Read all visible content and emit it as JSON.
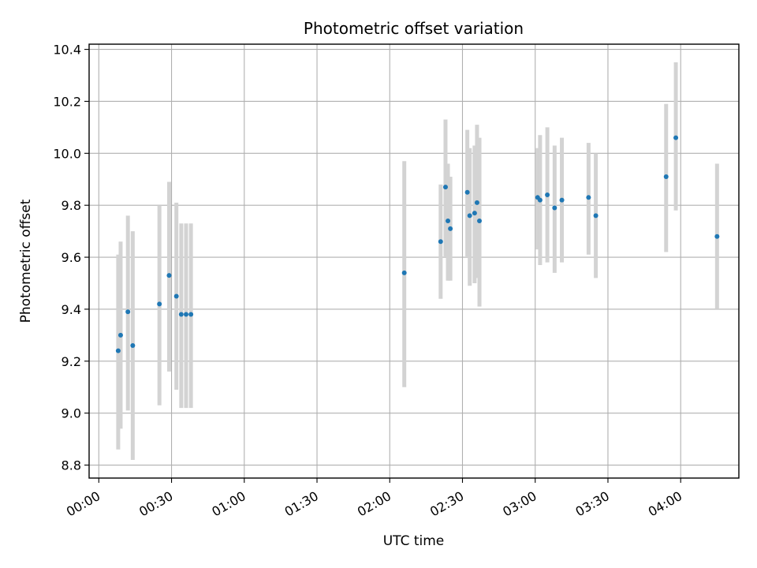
{
  "chart_data": {
    "type": "scatter",
    "title": "Photometric offset variation",
    "xlabel": "UTC time",
    "ylabel": "Photometric offset",
    "x_ticks": [
      "00:00",
      "00:30",
      "01:00",
      "01:30",
      "02:00",
      "02:30",
      "03:00",
      "03:30",
      "04:00"
    ],
    "y_ticks": [
      "8.8",
      "9.0",
      "9.2",
      "9.4",
      "9.6",
      "9.8",
      "10.0",
      "10.2",
      "10.4"
    ],
    "xlim": [
      "23:56",
      "04:24"
    ],
    "ylim": [
      8.75,
      10.42
    ],
    "grid": true,
    "series": [
      {
        "marker_color": "#1f77b4",
        "errorbar_color": "#d3d3d3",
        "points": [
          {
            "x": "00:08",
            "y": 9.24,
            "low": 8.86,
            "high": 9.61
          },
          {
            "x": "00:09",
            "y": 9.3,
            "low": 8.94,
            "high": 9.66
          },
          {
            "x": "00:12",
            "y": 9.39,
            "low": 9.01,
            "high": 9.76
          },
          {
            "x": "00:14",
            "y": 9.26,
            "low": 8.82,
            "high": 9.7
          },
          {
            "x": "00:25",
            "y": 9.42,
            "low": 9.03,
            "high": 9.8
          },
          {
            "x": "00:29",
            "y": 9.53,
            "low": 9.16,
            "high": 9.89
          },
          {
            "x": "00:32",
            "y": 9.45,
            "low": 9.09,
            "high": 9.81
          },
          {
            "x": "00:34",
            "y": 9.38,
            "low": 9.02,
            "high": 9.73
          },
          {
            "x": "00:36",
            "y": 9.38,
            "low": 9.02,
            "high": 9.73
          },
          {
            "x": "00:38",
            "y": 9.38,
            "low": 9.02,
            "high": 9.73
          },
          {
            "x": "02:06",
            "y": 9.54,
            "low": 9.1,
            "high": 9.97
          },
          {
            "x": "02:21",
            "y": 9.66,
            "low": 9.44,
            "high": 9.88
          },
          {
            "x": "02:23",
            "y": 9.87,
            "low": 9.6,
            "high": 10.13
          },
          {
            "x": "02:24",
            "y": 9.74,
            "low": 9.51,
            "high": 9.96
          },
          {
            "x": "02:25",
            "y": 9.71,
            "low": 9.51,
            "high": 9.91
          },
          {
            "x": "02:32",
            "y": 9.85,
            "low": 9.6,
            "high": 10.09
          },
          {
            "x": "02:33",
            "y": 9.76,
            "low": 9.49,
            "high": 10.02
          },
          {
            "x": "02:35",
            "y": 9.77,
            "low": 9.5,
            "high": 10.03
          },
          {
            "x": "02:36",
            "y": 9.81,
            "low": 9.52,
            "high": 10.11
          },
          {
            "x": "02:37",
            "y": 9.74,
            "low": 9.41,
            "high": 10.06
          },
          {
            "x": "03:01",
            "y": 9.83,
            "low": 9.63,
            "high": 10.02
          },
          {
            "x": "03:02",
            "y": 9.82,
            "low": 9.57,
            "high": 10.07
          },
          {
            "x": "03:05",
            "y": 9.84,
            "low": 9.58,
            "high": 10.1
          },
          {
            "x": "03:08",
            "y": 9.79,
            "low": 9.54,
            "high": 10.03
          },
          {
            "x": "03:11",
            "y": 9.82,
            "low": 9.58,
            "high": 10.06
          },
          {
            "x": "03:22",
            "y": 9.83,
            "low": 9.61,
            "high": 10.04
          },
          {
            "x": "03:25",
            "y": 9.76,
            "low": 9.52,
            "high": 10.0
          },
          {
            "x": "03:54",
            "y": 9.91,
            "low": 9.62,
            "high": 10.19
          },
          {
            "x": "03:58",
            "y": 10.06,
            "low": 9.78,
            "high": 10.35
          },
          {
            "x": "04:15",
            "y": 9.68,
            "low": 9.4,
            "high": 9.96
          }
        ]
      }
    ]
  }
}
